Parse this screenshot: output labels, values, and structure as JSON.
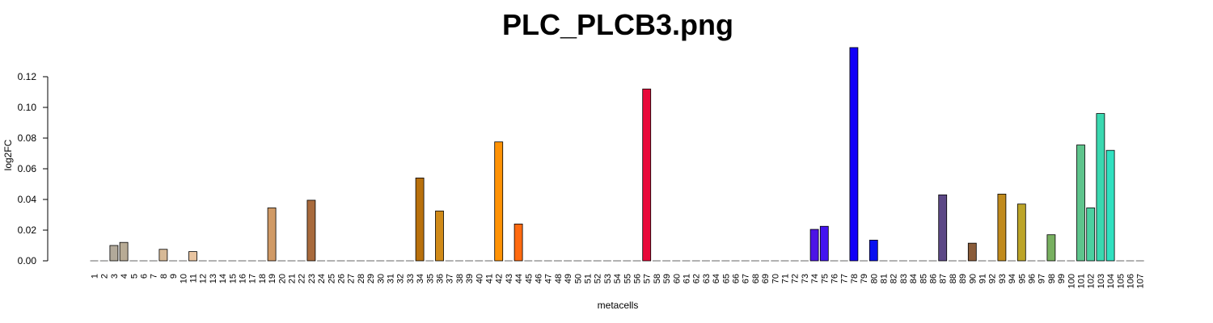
{
  "chart_data": {
    "type": "bar",
    "title": "PLC_PLCB3.png",
    "xlabel": "metacells",
    "ylabel": "log2FC",
    "ylim": [
      0,
      0.14
    ],
    "yticks": [
      "0.00",
      "0.02",
      "0.04",
      "0.06",
      "0.08",
      "0.10",
      "0.12"
    ],
    "grid": false,
    "categories": [
      "1",
      "2",
      "3",
      "4",
      "5",
      "6",
      "7",
      "8",
      "9",
      "10",
      "11",
      "12",
      "13",
      "14",
      "15",
      "16",
      "17",
      "18",
      "19",
      "20",
      "21",
      "22",
      "23",
      "24",
      "25",
      "26",
      "27",
      "28",
      "29",
      "30",
      "31",
      "32",
      "33",
      "34",
      "35",
      "36",
      "37",
      "38",
      "39",
      "40",
      "41",
      "42",
      "43",
      "44",
      "45",
      "46",
      "47",
      "48",
      "49",
      "50",
      "51",
      "52",
      "53",
      "54",
      "55",
      "56",
      "57",
      "58",
      "59",
      "60",
      "61",
      "62",
      "63",
      "64",
      "65",
      "66",
      "67",
      "68",
      "69",
      "70",
      "71",
      "72",
      "73",
      "74",
      "75",
      "76",
      "77",
      "78",
      "79",
      "80",
      "81",
      "82",
      "83",
      "84",
      "85",
      "86",
      "87",
      "88",
      "89",
      "90",
      "91",
      "92",
      "93",
      "94",
      "95",
      "96",
      "97",
      "98",
      "99",
      "100",
      "101",
      "102",
      "103",
      "104",
      "105",
      "106",
      "107"
    ],
    "values": [
      0,
      0,
      0.01,
      0.012,
      0,
      0,
      0,
      0.0075,
      0,
      0,
      0.006,
      0,
      0,
      0,
      0,
      0,
      0,
      0,
      0.0345,
      0,
      0,
      0,
      0.0395,
      0,
      0,
      0,
      0,
      0,
      0,
      0,
      0,
      0,
      0,
      0.054,
      0,
      0.0325,
      0,
      0,
      0,
      0,
      0,
      0.0775,
      0,
      0.024,
      0,
      0,
      0,
      0,
      0,
      0,
      0,
      0,
      0,
      0,
      0,
      0,
      0.112,
      0,
      0,
      0,
      0,
      0,
      0,
      0,
      0,
      0,
      0,
      0,
      0,
      0,
      0,
      0,
      0,
      0.0205,
      0.0225,
      0,
      0,
      0.139,
      0,
      0.0135,
      0,
      0,
      0,
      0,
      0,
      0,
      0.043,
      0,
      0,
      0.0115,
      0,
      0,
      0.0435,
      0,
      0.037,
      0,
      0,
      0.017,
      0,
      0,
      0.0755,
      0.0345,
      0.096,
      0.072,
      0,
      0,
      0
    ],
    "colors": [
      "#d3d3d3",
      "#c8c2b8",
      "#b2a99a",
      "#b8ab95",
      "#c9b9a0",
      "#d4bea0",
      "#d8bb98",
      "#d7b996",
      "#dcb898",
      "#dfb793",
      "#e8c4a0",
      "#d8a878",
      "#d09d6e",
      "#c89466",
      "#c48b5c",
      "#be8252",
      "#c68a58",
      "#c98f5e",
      "#d09a66",
      "#b87848",
      "#b06e40",
      "#a8683c",
      "#a86a3c",
      "#9c602e",
      "#a0622c",
      "#9e5e22",
      "#a2621e",
      "#a8661c",
      "#ae6a1a",
      "#b0700e",
      "#b4740c",
      "#b6760c",
      "#b87a0c",
      "#b8700c",
      "#c07a10",
      "#d08a18",
      "#e09020",
      "#f09418",
      "#f89a10",
      "#fc9a08",
      "#ff9808",
      "#ff9205",
      "#ff7810",
      "#ff6a10",
      "#f45a18",
      "#ec4a1e",
      "#e63a22",
      "#e23026",
      "#de2828",
      "#dc2230",
      "#e0183a",
      "#e41240",
      "#e60e46",
      "#e80c40",
      "#e80c3e",
      "#e80c3c",
      "#e8093a",
      "#d80c60",
      "#c00e80",
      "#a4109c",
      "#8410b8",
      "#6410d4",
      "#5010e4",
      "#4410ec",
      "#3c10f0",
      "#3810f2",
      "#3610f4",
      "#3410f6",
      "#3210f6",
      "#3010f8",
      "#2e10f8",
      "#2c10f8",
      "#2a10f8",
      "#4d14e6",
      "#4414f0",
      "#2a10f6",
      "#1808f8",
      "#1200f8",
      "#0c0cf0",
      "#0810f0",
      "#1010e0",
      "#2c2cb8",
      "#40308e",
      "#4a3874",
      "#543a6c",
      "#5a3a78",
      "#5c4886",
      "#6a5040",
      "#7a5a30",
      "#8a5c3a",
      "#9a6a28",
      "#aa7a1c",
      "#c08a1c",
      "#b49010",
      "#bca428",
      "#a0a850",
      "#88ac58",
      "#78b060",
      "#74b464",
      "#6cba78",
      "#5ec48c",
      "#4cd0a0",
      "#3ad8b0",
      "#30e0c0",
      "#60d8c0",
      "#80d0c0",
      "#a0c8c0"
    ]
  }
}
